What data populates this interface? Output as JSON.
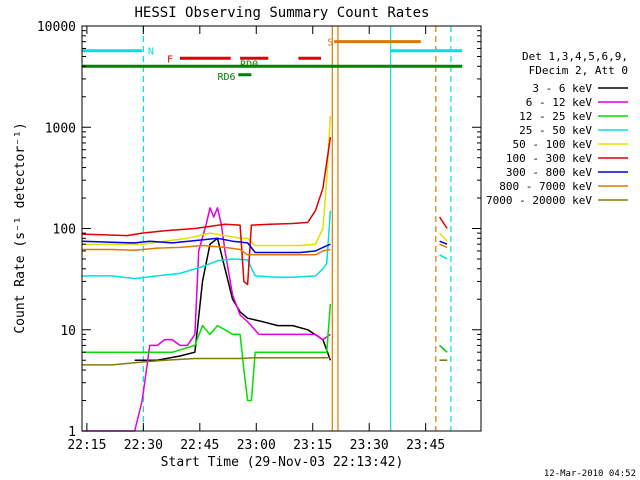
{
  "chart_data": {
    "type": "line",
    "title": "HESSI Observing Summary Count Rates",
    "xlabel": "Start Time (29-Nov-03 22:13:42)",
    "ylabel": "Count Rate (s⁻¹ detector⁻¹)",
    "footer": "12-Mar-2010 04:52",
    "y_scale": "log",
    "ylim": [
      1,
      10000
    ],
    "xlim_minutes": [
      0,
      106
    ],
    "x_ticks": [
      {
        "label": "22:15",
        "t": 1.3
      },
      {
        "label": "22:30",
        "t": 16.3
      },
      {
        "label": "22:45",
        "t": 31.3
      },
      {
        "label": "23:00",
        "t": 46.3
      },
      {
        "label": "23:15",
        "t": 61.3
      },
      {
        "label": "23:30",
        "t": 76.3
      },
      {
        "label": "23:45",
        "t": 91.3
      }
    ],
    "y_ticks": [
      {
        "label": "1",
        "v": 1
      },
      {
        "label": "10",
        "v": 10
      },
      {
        "label": "100",
        "v": 100
      },
      {
        "label": "1000",
        "v": 1000
      },
      {
        "label": "10000",
        "v": 10000
      }
    ],
    "legend": {
      "header": [
        "Det 1,3,4,5,6,9,",
        "FDecim 2, Att 0"
      ],
      "placement": "right"
    },
    "series": [
      {
        "name": "3 - 6 keV",
        "color": "#000000",
        "segments": [
          [
            [
              14,
              5
            ],
            [
              20,
              5
            ],
            [
              26,
              5.5
            ],
            [
              30,
              6
            ],
            [
              32,
              30
            ],
            [
              34,
              70
            ],
            [
              36,
              80
            ],
            [
              38,
              40
            ],
            [
              40,
              20
            ],
            [
              42,
              15
            ],
            [
              44,
              13
            ],
            [
              48,
              12
            ],
            [
              52,
              11
            ],
            [
              56,
              11
            ],
            [
              60,
              10
            ],
            [
              64,
              8
            ],
            [
              66,
              5
            ]
          ],
          [
            [
              95,
              5
            ],
            [
              97,
              5
            ]
          ]
        ]
      },
      {
        "name": "6 - 12 keV",
        "color": "#e000e0",
        "segments": [
          [
            [
              0,
              1
            ],
            [
              14,
              1
            ],
            [
              16,
              2
            ],
            [
              18,
              7
            ],
            [
              20,
              7
            ],
            [
              22,
              8
            ],
            [
              24,
              8
            ],
            [
              26,
              7
            ],
            [
              28,
              7
            ],
            [
              30,
              9
            ],
            [
              31,
              60
            ],
            [
              33,
              110
            ],
            [
              34,
              160
            ],
            [
              35,
              130
            ],
            [
              36,
              160
            ],
            [
              37,
              110
            ],
            [
              38,
              60
            ],
            [
              40,
              22
            ],
            [
              42,
              14
            ],
            [
              44,
              12
            ],
            [
              47,
              9
            ],
            [
              50,
              9
            ],
            [
              54,
              9
            ],
            [
              58,
              9
            ],
            [
              62,
              9
            ],
            [
              64,
              8
            ],
            [
              66,
              9
            ]
          ],
          [
            [
              95,
              7
            ],
            [
              97,
              6
            ]
          ]
        ]
      },
      {
        "name": "12 - 25 keV",
        "color": "#00e000",
        "segments": [
          [
            [
              0,
              6
            ],
            [
              8,
              6
            ],
            [
              16,
              6
            ],
            [
              24,
              6
            ],
            [
              30,
              7
            ],
            [
              32,
              11
            ],
            [
              34,
              9
            ],
            [
              36,
              11
            ],
            [
              38,
              10
            ],
            [
              40,
              9
            ],
            [
              42,
              9
            ],
            [
              43,
              4
            ],
            [
              44,
              2
            ],
            [
              45,
              2
            ],
            [
              46,
              6
            ],
            [
              50,
              6
            ],
            [
              56,
              6
            ],
            [
              62,
              6
            ],
            [
              65,
              6
            ],
            [
              66,
              18
            ]
          ],
          [
            [
              95,
              7
            ],
            [
              97,
              6
            ]
          ]
        ]
      },
      {
        "name": "25 - 50 keV",
        "color": "#00e0e0",
        "segments": [
          [
            [
              0,
              34
            ],
            [
              8,
              34
            ],
            [
              14,
              32
            ],
            [
              20,
              34
            ],
            [
              26,
              36
            ],
            [
              32,
              42
            ],
            [
              36,
              48
            ],
            [
              40,
              50
            ],
            [
              44,
              49
            ],
            [
              46,
              34
            ],
            [
              52,
              33
            ],
            [
              56,
              33
            ],
            [
              62,
              34
            ],
            [
              64,
              40
            ],
            [
              65,
              45
            ],
            [
              66,
              150
            ]
          ],
          [
            [
              95,
              55
            ],
            [
              97,
              50
            ]
          ]
        ]
      },
      {
        "name": "50 - 100 keV",
        "color": "#e0e000",
        "segments": [
          [
            [
              0,
              70
            ],
            [
              10,
              70
            ],
            [
              16,
              70
            ],
            [
              22,
              75
            ],
            [
              28,
              80
            ],
            [
              34,
              90
            ],
            [
              38,
              85
            ],
            [
              42,
              80
            ],
            [
              44,
              80
            ],
            [
              46,
              68
            ],
            [
              52,
              68
            ],
            [
              58,
              68
            ],
            [
              62,
              70
            ],
            [
              64,
              100
            ],
            [
              65,
              300
            ],
            [
              66,
              1300
            ]
          ],
          [
            [
              95,
              90
            ],
            [
              97,
              75
            ]
          ]
        ]
      },
      {
        "name": "100 - 300 keV",
        "color": "#e00000",
        "segments": [
          [
            [
              0,
              88
            ],
            [
              8,
              86
            ],
            [
              12,
              85
            ],
            [
              16,
              90
            ],
            [
              22,
              95
            ],
            [
              30,
              100
            ],
            [
              34,
              105
            ],
            [
              38,
              110
            ],
            [
              42,
              108
            ],
            [
              43,
              30
            ],
            [
              44,
              28
            ],
            [
              45,
              108
            ],
            [
              50,
              110
            ],
            [
              56,
              112
            ],
            [
              60,
              115
            ],
            [
              62,
              150
            ],
            [
              64,
              250
            ],
            [
              66,
              800
            ]
          ],
          [
            [
              95,
              130
            ],
            [
              97,
              100
            ]
          ]
        ]
      },
      {
        "name": "300 - 800 keV",
        "color": "#0000e0",
        "segments": [
          [
            [
              0,
              75
            ],
            [
              8,
              73
            ],
            [
              14,
              72
            ],
            [
              18,
              75
            ],
            [
              24,
              72
            ],
            [
              30,
              76
            ],
            [
              36,
              80
            ],
            [
              40,
              75
            ],
            [
              44,
              72
            ],
            [
              46,
              58
            ],
            [
              52,
              58
            ],
            [
              58,
              58
            ],
            [
              62,
              60
            ],
            [
              64,
              65
            ],
            [
              66,
              70
            ]
          ],
          [
            [
              95,
              75
            ],
            [
              97,
              70
            ]
          ]
        ]
      },
      {
        "name": "800 - 7000 keV",
        "color": "#e07800",
        "segments": [
          [
            [
              0,
              62
            ],
            [
              8,
              62
            ],
            [
              14,
              61
            ],
            [
              20,
              64
            ],
            [
              26,
              65
            ],
            [
              32,
              68
            ],
            [
              38,
              65
            ],
            [
              42,
              62
            ],
            [
              44,
              55
            ],
            [
              50,
              55
            ],
            [
              56,
              55
            ],
            [
              62,
              55
            ],
            [
              64,
              60
            ],
            [
              66,
              62
            ]
          ],
          [
            [
              95,
              70
            ],
            [
              97,
              65
            ]
          ]
        ]
      },
      {
        "name": "7000 - 20000 keV",
        "color": "#7f7f00",
        "segments": [
          [
            [
              0,
              4.5
            ],
            [
              8,
              4.5
            ],
            [
              16,
              4.8
            ],
            [
              22,
              5
            ],
            [
              30,
              5.2
            ],
            [
              36,
              5.2
            ],
            [
              42,
              5.2
            ],
            [
              46,
              5.3
            ],
            [
              52,
              5.3
            ],
            [
              58,
              5.3
            ],
            [
              64,
              5.3
            ],
            [
              66,
              5.3
            ]
          ],
          [
            [
              95,
              5
            ],
            [
              97,
              5
            ]
          ]
        ]
      }
    ],
    "flags": [
      {
        "label": "N",
        "color": "#00e0e0",
        "level": 5700,
        "spans": [
          [
            0,
            16
          ],
          [
            82,
            101
          ]
        ]
      },
      {
        "label": "F",
        "color": "#e00000",
        "level": 4800,
        "spans": [
          [
            26,
            39.5
          ],
          [
            42,
            49.5
          ],
          [
            57.5,
            63.5
          ]
        ]
      },
      {
        "label": "RD0",
        "color": "#008000",
        "level": 4000,
        "spans": [
          [
            0,
            101
          ]
        ]
      },
      {
        "label": "RD6",
        "color": "#008000",
        "level": 3300,
        "spans": [
          [
            41.5,
            45
          ]
        ]
      },
      {
        "label": "S",
        "color": "#e07800",
        "level": 7000,
        "spans": [
          [
            67,
            90
          ]
        ]
      }
    ],
    "vertical_lines": [
      {
        "t": 16.3,
        "color": "#00e0e0",
        "style": "dashed"
      },
      {
        "t": 66.5,
        "color": "#e07800",
        "style": "solid"
      },
      {
        "t": 68,
        "color": "#e07800",
        "style": "solid"
      },
      {
        "t": 82,
        "color": "#00e0e0",
        "style": "solid"
      },
      {
        "t": 94,
        "color": "#e07800",
        "style": "dashed"
      },
      {
        "t": 98,
        "color": "#00e0e0",
        "style": "dashed"
      }
    ]
  }
}
